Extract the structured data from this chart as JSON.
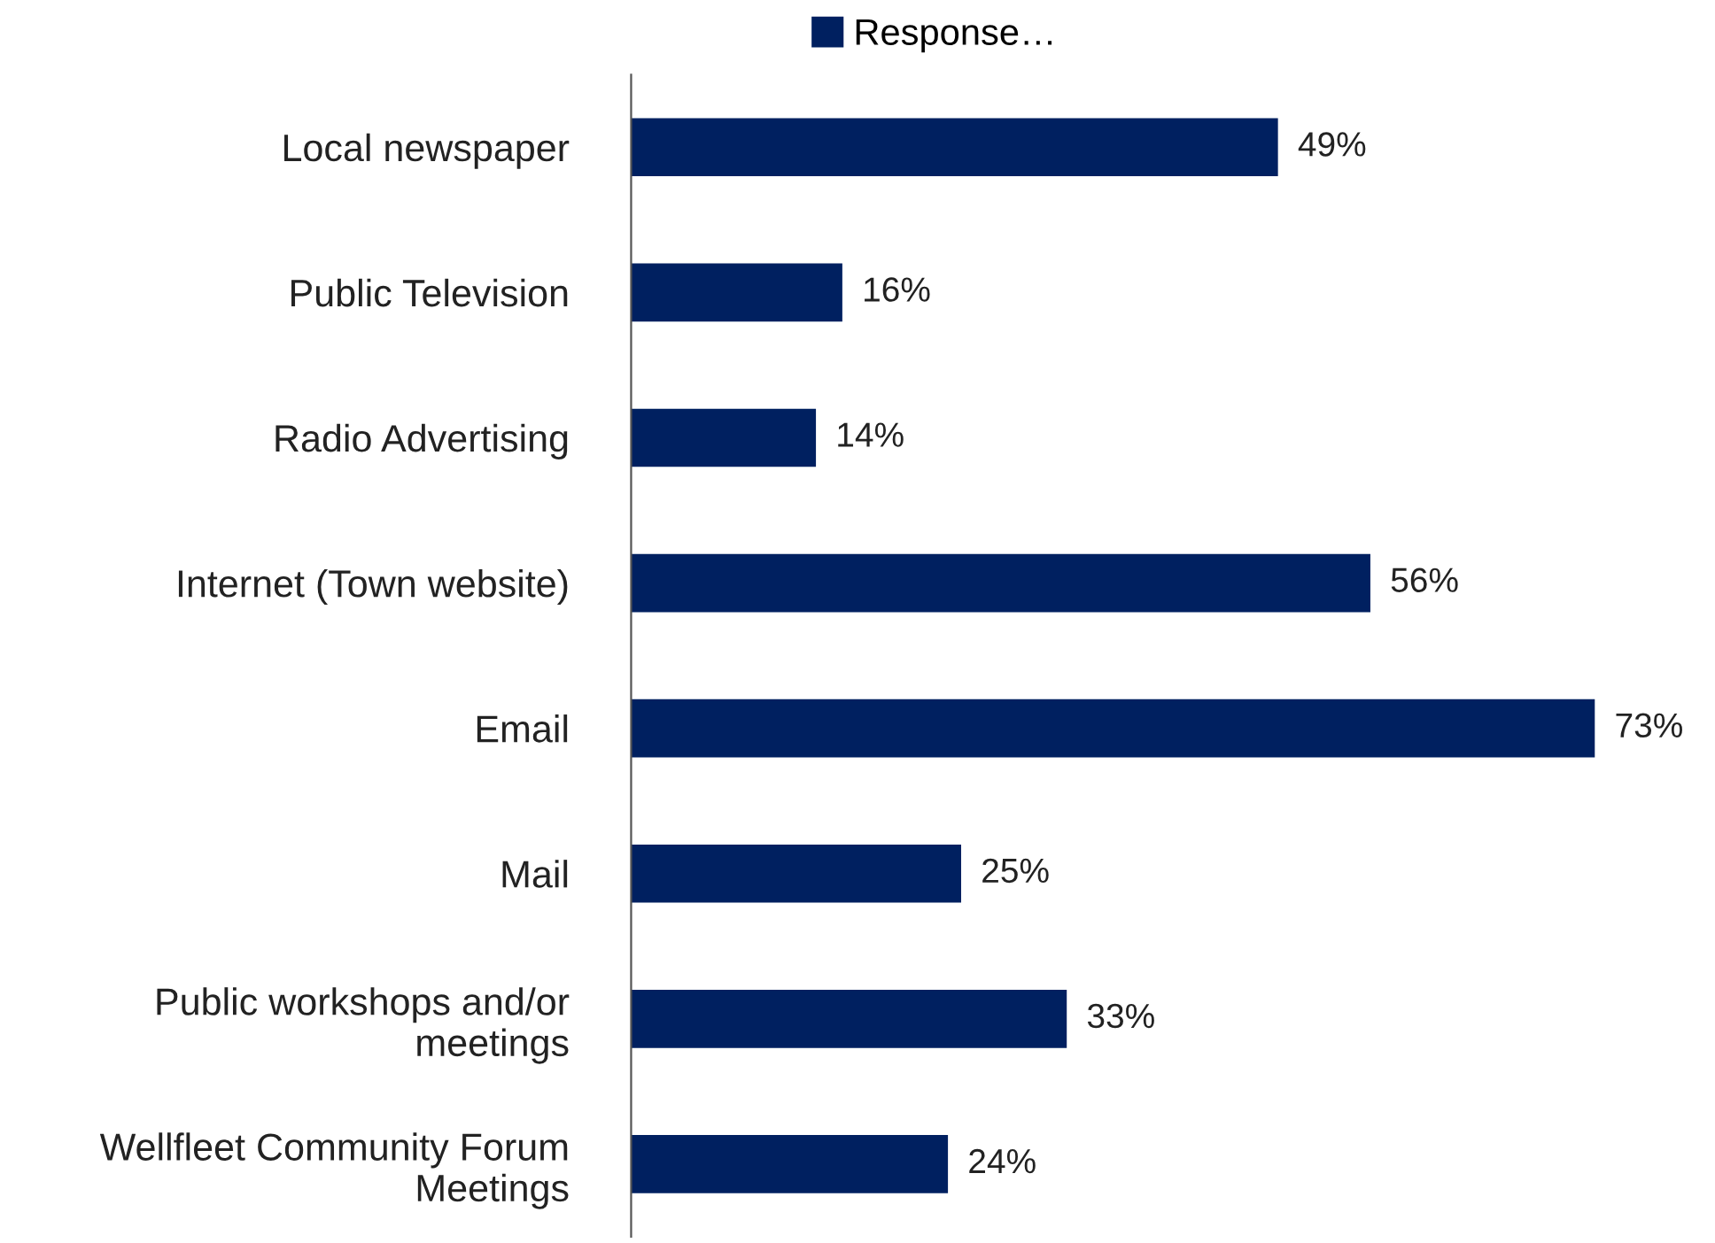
{
  "chart_data": {
    "type": "bar",
    "orientation": "horizontal",
    "categories": [
      "Local newspaper",
      "Public Television",
      "Radio Advertising",
      "Internet (Town website)",
      "Email",
      "Mail",
      "Public workshops and/or\nmeetings",
      "Wellfleet Community Forum\nMeetings"
    ],
    "series": [
      {
        "name": "Response…",
        "color": "#002060",
        "values": [
          49,
          16,
          14,
          56,
          73,
          25,
          33,
          24
        ],
        "value_labels": [
          "49%",
          "16%",
          "14%",
          "56%",
          "73%",
          "25%",
          "33%",
          "24%"
        ]
      }
    ],
    "legend": "top",
    "grid": false,
    "tick_labels": "y"
  }
}
